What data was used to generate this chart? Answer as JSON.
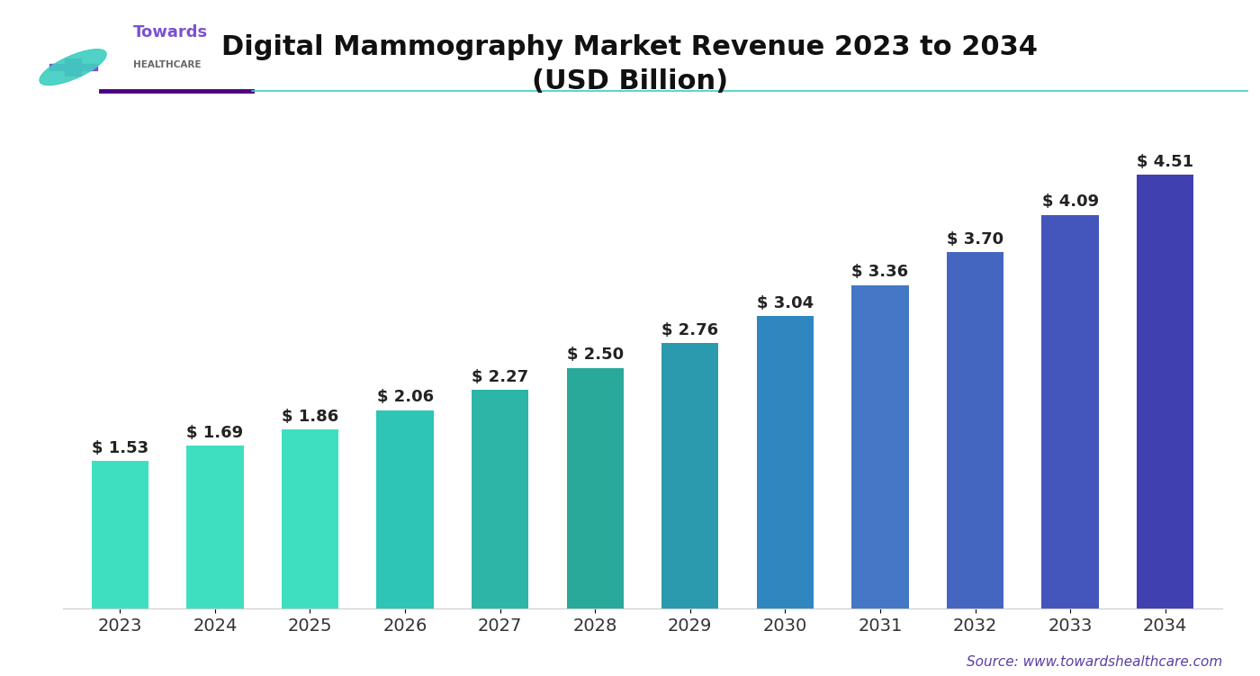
{
  "years": [
    2023,
    2024,
    2025,
    2026,
    2027,
    2028,
    2029,
    2030,
    2031,
    2032,
    2033,
    2034
  ],
  "values": [
    1.53,
    1.69,
    1.86,
    2.06,
    2.27,
    2.5,
    2.76,
    3.04,
    3.36,
    3.7,
    4.09,
    4.51
  ],
  "bar_colors": [
    "#3EDFC0",
    "#3EDFC0",
    "#3EDFC0",
    "#2EC4B6",
    "#2DB5A8",
    "#28A99A",
    "#2B9AAF",
    "#3087C0",
    "#4477C5",
    "#4466C0",
    "#4455BB",
    "#4040B0"
  ],
  "title_line1": "Digital Mammography Market Revenue 2023 to 2034",
  "title_line2": "(USD Billion)",
  "source_text": "Source: www.towardshealthcare.com",
  "source_color": "#5B3FA0",
  "background_color": "#FFFFFF",
  "grid_color": "#E0E0E0",
  "label_color": "#222222",
  "title_color": "#111111",
  "ylim": [
    0,
    5.2
  ],
  "bar_width": 0.6,
  "label_fontsize": 13,
  "title_fontsize": 22,
  "tick_fontsize": 14,
  "source_fontsize": 11,
  "separator_color_left": "#4B0082",
  "separator_color_right": "#3DCFC0"
}
